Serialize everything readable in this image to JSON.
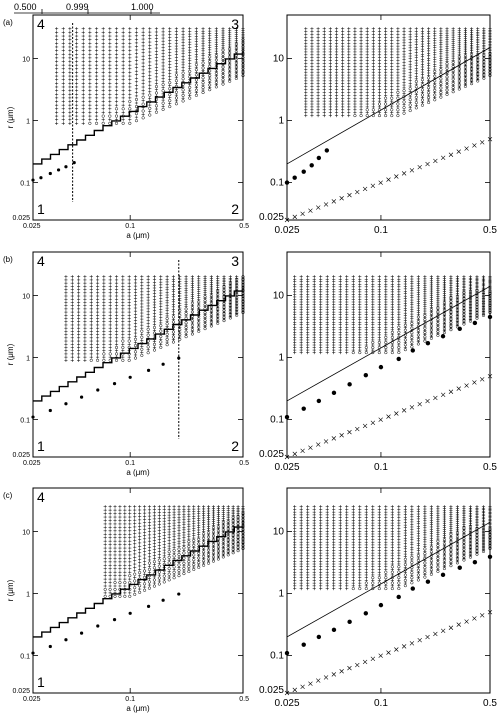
{
  "figure": {
    "top_scale": {
      "labels": [
        "0.500",
        "0.999",
        "1.000"
      ]
    },
    "left_panels": [
      {
        "tag": "(a)",
        "corner_labels": {
          "tl": "4",
          "tr": "3",
          "bl": "1",
          "br": "2"
        },
        "ylabel": "r (μm)",
        "xlabel": "a (μm)",
        "yticks": [
          "10",
          "1",
          "0.1",
          "0.025"
        ],
        "xticks": [
          "0.025",
          "0.1",
          "0.5"
        ],
        "vertical_line_a": 0.044
      },
      {
        "tag": "(b)",
        "corner_labels": {
          "tl": "4",
          "tr": "3",
          "bl": "1",
          "br": "2"
        },
        "ylabel": "r (μm)",
        "xlabel": "a (μm)",
        "yticks": [
          "10",
          "1",
          "0.1",
          "0.025"
        ],
        "xticks": [
          "0.025",
          "0.1",
          "0.5"
        ],
        "vertical_line_a": 0.2
      },
      {
        "tag": "(c)",
        "corner_labels": {
          "tl": "4",
          "tr": "",
          "bl": "1",
          "br": ""
        },
        "ylabel": "r (μm)",
        "xlabel": "a (μm)",
        "yticks": [
          "10",
          "1",
          "0.1",
          "0.025"
        ],
        "xticks": [
          "0.025",
          "0.1",
          "0.5"
        ],
        "vertical_line_a": null
      }
    ],
    "right_panels": [
      {
        "yticks": [
          "10",
          "1",
          "0.1",
          "0.025"
        ],
        "xticks": [
          "0.025",
          "0.1",
          "0.5"
        ]
      },
      {
        "yticks": [
          "10",
          "1",
          "0.1",
          "0.025"
        ],
        "xticks": [
          "0.025",
          "0.1",
          "0.5"
        ]
      },
      {
        "yticks": [
          "10",
          "1",
          "0.1",
          "0.025"
        ],
        "xticks": [
          "0.025",
          "0.1",
          "0.5"
        ]
      }
    ]
  },
  "chart_data": [
    {
      "type": "scatter",
      "panel": "a-left",
      "x_scale": "log",
      "y_scale": "log",
      "xlim": [
        0.025,
        0.5
      ],
      "ylim": [
        0.025,
        50
      ],
      "xlabel": "a (μm)",
      "ylabel": "r (μm)",
      "series": [
        {
          "marker": "dot",
          "points": [
            [
              0.025,
              0.11
            ],
            [
              0.028,
              0.12
            ],
            [
              0.032,
              0.14
            ],
            [
              0.036,
              0.16
            ],
            [
              0.04,
              0.18
            ],
            [
              0.045,
              0.21
            ]
          ]
        },
        {
          "marker": "line",
          "points": [
            [
              0.025,
              0.2
            ],
            [
              0.5,
              14
            ]
          ]
        }
      ],
      "region": {
        "a_min": 0.035,
        "a_max": 0.5,
        "r_max": 30
      }
    },
    {
      "type": "scatter",
      "panel": "a-right",
      "x_scale": "log",
      "y_scale": "log",
      "xlim": [
        0.025,
        0.5
      ],
      "ylim": [
        0.025,
        50
      ],
      "series": [
        {
          "marker": "dot",
          "points": [
            [
              0.025,
              0.1
            ],
            [
              0.028,
              0.12
            ],
            [
              0.032,
              0.15
            ],
            [
              0.036,
              0.19
            ],
            [
              0.04,
              0.25
            ],
            [
              0.045,
              0.33
            ]
          ]
        },
        {
          "marker": "line",
          "points": [
            [
              0.025,
              0.2
            ],
            [
              0.5,
              15
            ]
          ]
        },
        {
          "marker": "x",
          "points": [
            [
              0.025,
              0.025
            ],
            [
              0.5,
              0.5
            ]
          ]
        }
      ],
      "region": {
        "a_min": 0.033,
        "a_max": 0.5,
        "r_max": 30
      }
    },
    {
      "type": "scatter",
      "panel": "b-left",
      "x_scale": "log",
      "y_scale": "log",
      "xlim": [
        0.025,
        0.5
      ],
      "ylim": [
        0.025,
        50
      ],
      "xlabel": "a (μm)",
      "ylabel": "r (μm)",
      "series": [
        {
          "marker": "dot",
          "points": [
            [
              0.025,
              0.11
            ],
            [
              0.032,
              0.14
            ],
            [
              0.04,
              0.18
            ],
            [
              0.05,
              0.23
            ],
            [
              0.063,
              0.3
            ],
            [
              0.08,
              0.38
            ],
            [
              0.1,
              0.48
            ],
            [
              0.13,
              0.62
            ],
            [
              0.16,
              0.78
            ],
            [
              0.2,
              0.98
            ]
          ]
        },
        {
          "marker": "line",
          "points": [
            [
              0.025,
              0.2
            ],
            [
              0.5,
              14
            ]
          ]
        }
      ],
      "region": {
        "a_min": 0.04,
        "a_max": 0.5,
        "r_max": 20
      }
    },
    {
      "type": "scatter",
      "panel": "b-right",
      "x_scale": "log",
      "y_scale": "log",
      "xlim": [
        0.025,
        0.5
      ],
      "ylim": [
        0.025,
        50
      ],
      "series": [
        {
          "marker": "dot",
          "points": [
            [
              0.025,
              0.11
            ],
            [
              0.032,
              0.15
            ],
            [
              0.04,
              0.2
            ],
            [
              0.05,
              0.27
            ],
            [
              0.063,
              0.37
            ],
            [
              0.08,
              0.52
            ],
            [
              0.1,
              0.7
            ],
            [
              0.13,
              0.95
            ],
            [
              0.16,
              1.3
            ],
            [
              0.2,
              1.7
            ],
            [
              0.25,
              2.2
            ],
            [
              0.32,
              2.9
            ],
            [
              0.4,
              3.6
            ],
            [
              0.5,
              4.5
            ]
          ]
        },
        {
          "marker": "line",
          "points": [
            [
              0.025,
              0.2
            ],
            [
              0.5,
              14
            ]
          ]
        },
        {
          "marker": "x",
          "points": [
            [
              0.025,
              0.025
            ],
            [
              0.5,
              0.5
            ]
          ]
        }
      ],
      "region": {
        "a_min": 0.028,
        "a_max": 0.5,
        "r_max": 20
      }
    },
    {
      "type": "scatter",
      "panel": "c-left",
      "x_scale": "log",
      "y_scale": "log",
      "xlim": [
        0.025,
        0.5
      ],
      "ylim": [
        0.025,
        50
      ],
      "xlabel": "a (μm)",
      "ylabel": "r (μm)",
      "series": [
        {
          "marker": "dot",
          "points": [
            [
              0.025,
              0.11
            ],
            [
              0.032,
              0.14
            ],
            [
              0.04,
              0.18
            ],
            [
              0.05,
              0.23
            ],
            [
              0.063,
              0.3
            ],
            [
              0.08,
              0.38
            ],
            [
              0.1,
              0.48
            ],
            [
              0.13,
              0.62
            ],
            [
              0.16,
              0.78
            ],
            [
              0.2,
              0.98
            ]
          ]
        },
        {
          "marker": "line",
          "points": [
            [
              0.025,
              0.2
            ],
            [
              0.5,
              14
            ]
          ]
        }
      ],
      "region": {
        "a_min": 0.07,
        "a_max": 0.5,
        "r_max": 25
      }
    },
    {
      "type": "scatter",
      "panel": "c-right",
      "x_scale": "log",
      "y_scale": "log",
      "xlim": [
        0.025,
        0.5
      ],
      "ylim": [
        0.025,
        50
      ],
      "series": [
        {
          "marker": "dot",
          "points": [
            [
              0.025,
              0.11
            ],
            [
              0.032,
              0.15
            ],
            [
              0.04,
              0.2
            ],
            [
              0.05,
              0.26
            ],
            [
              0.063,
              0.35
            ],
            [
              0.08,
              0.48
            ],
            [
              0.1,
              0.65
            ],
            [
              0.13,
              0.88
            ],
            [
              0.16,
              1.2
            ],
            [
              0.2,
              1.55
            ],
            [
              0.25,
              2.0
            ],
            [
              0.32,
              2.6
            ],
            [
              0.4,
              3.2
            ],
            [
              0.5,
              3.9
            ]
          ]
        },
        {
          "marker": "line",
          "points": [
            [
              0.025,
              0.2
            ],
            [
              0.5,
              14
            ]
          ]
        },
        {
          "marker": "x",
          "points": [
            [
              0.025,
              0.025
            ],
            [
              0.5,
              0.5
            ]
          ]
        }
      ],
      "region": {
        "a_min": 0.028,
        "a_max": 0.5,
        "r_max": 25
      }
    }
  ]
}
